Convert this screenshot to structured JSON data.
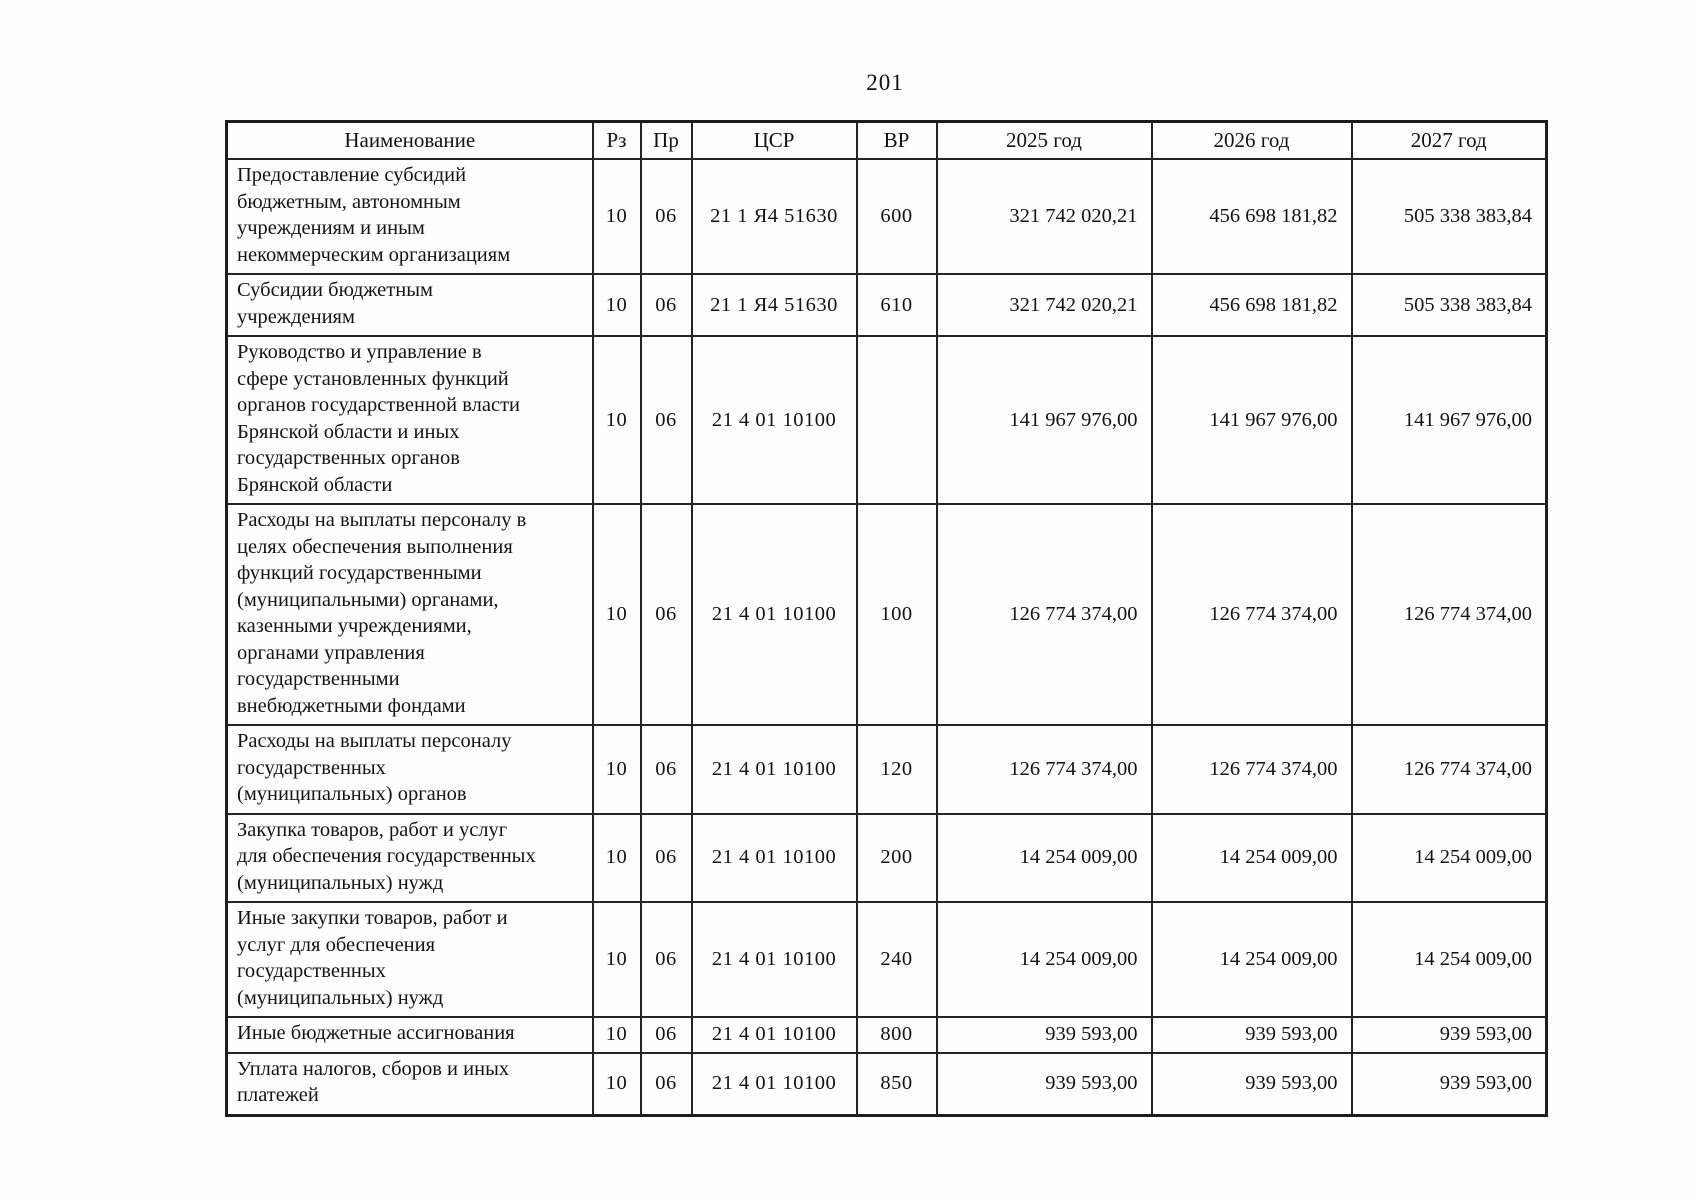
{
  "page_number": "201",
  "table": {
    "columns": [
      {
        "key": "name",
        "label": "Наименование"
      },
      {
        "key": "rz",
        "label": "Рз"
      },
      {
        "key": "pr",
        "label": "Пр"
      },
      {
        "key": "csr",
        "label": "ЦСР"
      },
      {
        "key": "vr",
        "label": "ВР"
      },
      {
        "key": "y2025",
        "label": "2025 год"
      },
      {
        "key": "y2026",
        "label": "2026 год"
      },
      {
        "key": "y2027",
        "label": "2027 год"
      }
    ],
    "rows": [
      {
        "name": "Предоставление субсидий\nбюджетным, автономным\nучреждениям и иным\nнекоммерческим организациям",
        "rz": "10",
        "pr": "06",
        "csr": "21 1 Я4 51630",
        "vr": "600",
        "y2025": "321 742 020,21",
        "y2026": "456 698 181,82",
        "y2027": "505 338 383,84"
      },
      {
        "name": "Субсидии бюджетным\nучреждениям",
        "rz": "10",
        "pr": "06",
        "csr": "21 1 Я4 51630",
        "vr": "610",
        "y2025": "321 742 020,21",
        "y2026": "456 698 181,82",
        "y2027": "505 338 383,84"
      },
      {
        "name": "Руководство и управление в\nсфере установленных функций\nорганов государственной власти\nБрянской области и иных\nгосударственных органов\nБрянской области",
        "rz": "10",
        "pr": "06",
        "csr": "21 4 01 10100",
        "vr": "",
        "y2025": "141 967 976,00",
        "y2026": "141 967 976,00",
        "y2027": "141 967 976,00"
      },
      {
        "name": "Расходы на выплаты персоналу в\nцелях обеспечения выполнения\nфункций государственными\n(муниципальными) органами,\nказенными учреждениями,\nорганами управления\nгосударственными\nвнебюджетными фондами",
        "rz": "10",
        "pr": "06",
        "csr": "21 4 01 10100",
        "vr": "100",
        "y2025": "126 774 374,00",
        "y2026": "126 774 374,00",
        "y2027": "126 774 374,00"
      },
      {
        "name": "Расходы на выплаты персоналу\nгосударственных\n(муниципальных) органов",
        "rz": "10",
        "pr": "06",
        "csr": "21 4 01 10100",
        "vr": "120",
        "y2025": "126 774 374,00",
        "y2026": "126 774 374,00",
        "y2027": "126 774 374,00"
      },
      {
        "name": "Закупка товаров, работ и услуг\nдля обеспечения государственных\n(муниципальных) нужд",
        "rz": "10",
        "pr": "06",
        "csr": "21 4 01 10100",
        "vr": "200",
        "y2025": "14 254 009,00",
        "y2026": "14 254 009,00",
        "y2027": "14 254 009,00"
      },
      {
        "name": "Иные закупки товаров, работ и\nуслуг для обеспечения\nгосударственных\n(муниципальных) нужд",
        "rz": "10",
        "pr": "06",
        "csr": "21 4 01 10100",
        "vr": "240",
        "y2025": "14 254 009,00",
        "y2026": "14 254 009,00",
        "y2027": "14 254 009,00"
      },
      {
        "name": "Иные бюджетные ассигнования",
        "rz": "10",
        "pr": "06",
        "csr": "21 4 01 10100",
        "vr": "800",
        "y2025": "939 593,00",
        "y2026": "939 593,00",
        "y2027": "939 593,00"
      },
      {
        "name": "Уплата налогов, сборов и иных\nплатежей",
        "rz": "10",
        "pr": "06",
        "csr": "21 4 01 10100",
        "vr": "850",
        "y2025": "939 593,00",
        "y2026": "939 593,00",
        "y2027": "939 593,00"
      }
    ]
  }
}
